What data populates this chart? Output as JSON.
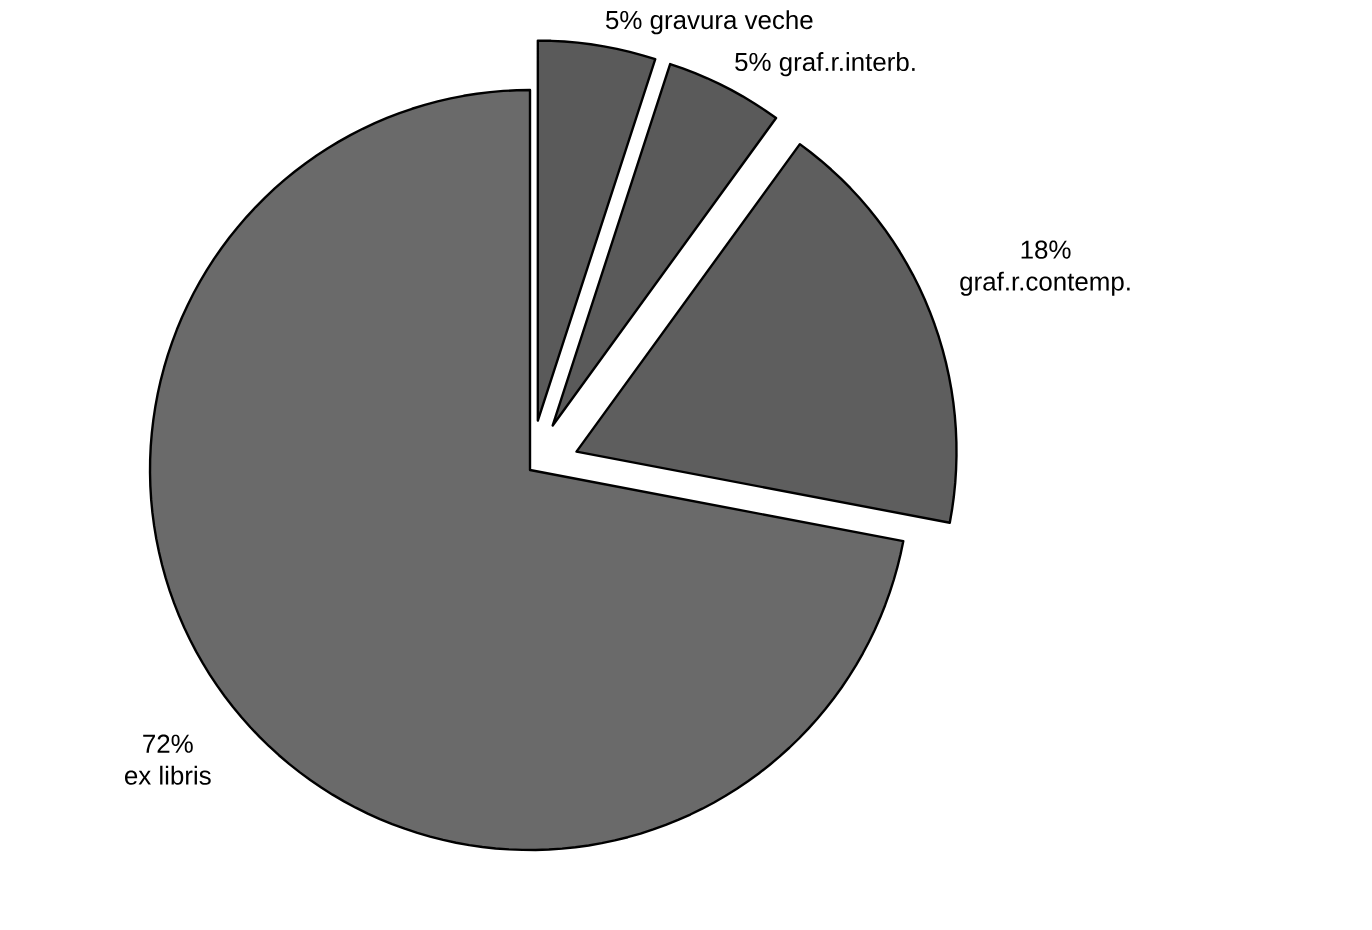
{
  "chart_data": {
    "type": "pie",
    "categories": [
      "gravura veche",
      "graf.r.interb.",
      "graf.r.contemp.",
      "ex libris"
    ],
    "values": [
      5,
      5,
      18,
      72
    ],
    "value_labels": [
      "5%",
      "5%",
      "18%",
      "72%"
    ],
    "colors": [
      "#5a5a5a",
      "#5a5a5a",
      "#5e5e5e",
      "#6a6a6a"
    ],
    "legend": false
  }
}
